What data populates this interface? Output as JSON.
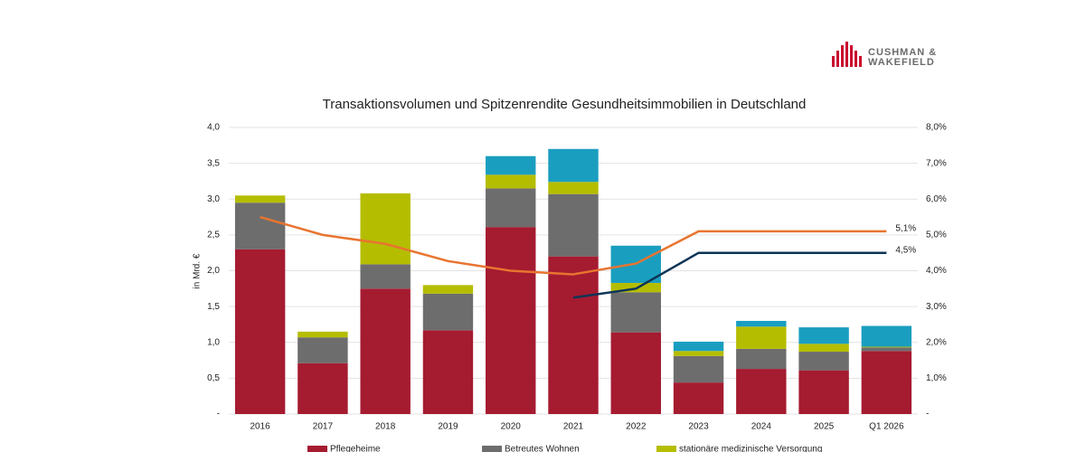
{
  "logo": {
    "lines": [
      "CUSHMAN &",
      "WAKEFIELD"
    ]
  },
  "chart_data": {
    "type": "bar",
    "stacked": true,
    "title": "Transaktionsvolumen und Spitzenrendite Gesundheitsimmobilien in Deutschland",
    "y_label": "in Mrd. €",
    "categories": [
      "2016",
      "2017",
      "2018",
      "2019",
      "2020",
      "2021",
      "2022",
      "2023",
      "2024",
      "2025",
      "Q1 2026"
    ],
    "ylim": [
      0,
      4
    ],
    "yticks": [
      {
        "value": 0,
        "label": "-"
      },
      {
        "value": 0.5,
        "label": "0,5"
      },
      {
        "value": 1,
        "label": "1,0"
      },
      {
        "value": 1.5,
        "label": "1,5"
      },
      {
        "value": 2,
        "label": "2,0"
      },
      {
        "value": 2.5,
        "label": "2,5"
      },
      {
        "value": 3,
        "label": "3,0"
      },
      {
        "value": 3.5,
        "label": "3,5"
      },
      {
        "value": 4,
        "label": "4,0"
      }
    ],
    "y2lim": [
      0,
      8
    ],
    "y2ticks": [
      {
        "value": 0,
        "label": "-"
      },
      {
        "value": 1,
        "label": "1,0%"
      },
      {
        "value": 2,
        "label": "2,0%"
      },
      {
        "value": 3,
        "label": "3,0%"
      },
      {
        "value": 4,
        "label": "4,0%"
      },
      {
        "value": 5,
        "label": "5,0%"
      },
      {
        "value": 6,
        "label": "6,0%"
      },
      {
        "value": 7,
        "label": "7,0%"
      },
      {
        "value": 8,
        "label": "8,0%"
      }
    ],
    "grid": true,
    "series": [
      {
        "name": "Pflegeheime",
        "color": "#a51b30",
        "values": [
          2.3,
          0.71,
          1.75,
          1.17,
          2.61,
          2.2,
          1.14,
          0.44,
          0.63,
          0.61,
          0.88
        ]
      },
      {
        "name": "Betreutes Wohnen",
        "color": "#6d6d6d",
        "values": [
          0.65,
          0.36,
          0.34,
          0.51,
          0.54,
          0.87,
          0.56,
          0.37,
          0.28,
          0.26,
          0.05
        ]
      },
      {
        "name": "stationäre medizinische Versorgung",
        "color": "#b5bd00",
        "values": [
          0.1,
          0.08,
          0.99,
          0.12,
          0.19,
          0.17,
          0.13,
          0.07,
          0.31,
          0.11,
          0.01
        ]
      },
      {
        "color": "#1a9ec0",
        "values": [
          0,
          0,
          0,
          0,
          0.26,
          0.46,
          0.52,
          0.13,
          0.08,
          0.23,
          0.29
        ]
      },
      {
        "type": "line",
        "axis": "y2",
        "color": "#e87430",
        "values": [
          5.5,
          5.0,
          4.75,
          4.27,
          4.0,
          3.9,
          4.2,
          5.1,
          5.1,
          5.1,
          5.1
        ],
        "value_labels": [
          null,
          null,
          null,
          null,
          null,
          null,
          null,
          null,
          null,
          null,
          "5,1%"
        ]
      },
      {
        "type": "line",
        "axis": "y2",
        "color": "#0c3456",
        "values": [
          null,
          null,
          null,
          null,
          null,
          3.25,
          3.5,
          4.5,
          4.5,
          4.5,
          4.5
        ],
        "value_labels": [
          null,
          null,
          null,
          null,
          null,
          null,
          null,
          null,
          null,
          null,
          "4,5%"
        ]
      }
    ]
  }
}
